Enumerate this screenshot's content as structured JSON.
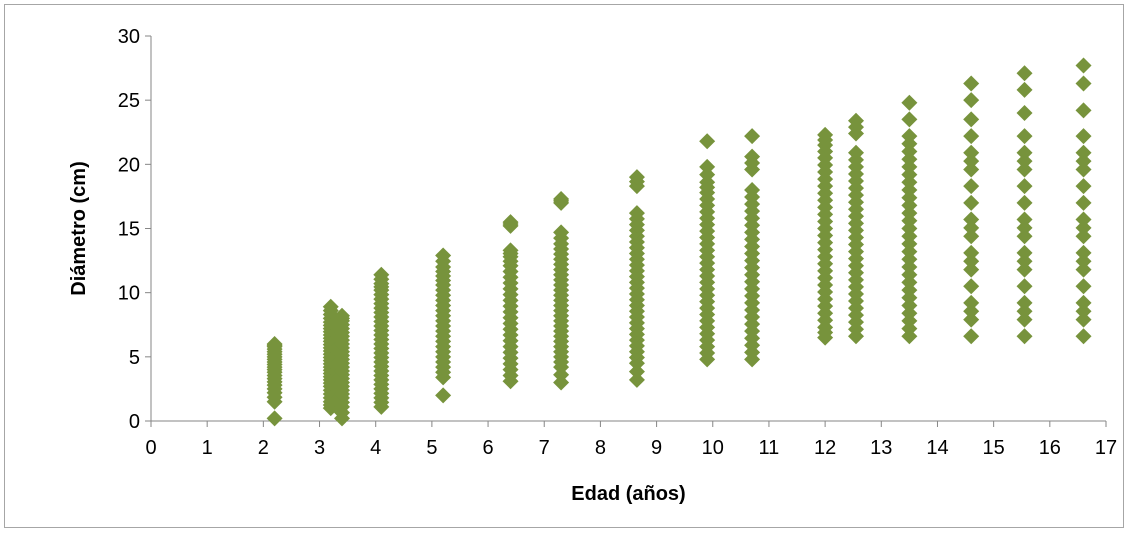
{
  "chart_data": {
    "type": "scatter",
    "title": "",
    "xlabel": "Edad (años)",
    "ylabel": "Diámetro (cm)",
    "xlim": [
      0,
      17
    ],
    "ylim": [
      0,
      30
    ],
    "x_ticks": [
      "0",
      "1",
      "2",
      "3",
      "4",
      "5",
      "6",
      "7",
      "8",
      "9",
      "10",
      "11",
      "12",
      "13",
      "14",
      "15",
      "16",
      "17"
    ],
    "y_ticks": [
      "0",
      "5",
      "10",
      "15",
      "20",
      "25",
      "30"
    ],
    "grid": false,
    "legend": "none",
    "marker": "diamond",
    "color": "#77933c",
    "series": [
      {
        "values": [
          {
            "x": 2.2,
            "y": [
              0.2,
              1.5,
              2.2,
              2.8,
              3.3,
              3.8,
              4.2,
              4.6,
              5.0,
              5.4,
              5.8,
              6.0
            ]
          },
          {
            "x": 3.2,
            "y": [
              1.0,
              1.5,
              2.1,
              2.7,
              3.2,
              3.7,
              4.2,
              4.7,
              5.2,
              5.7,
              6.2,
              6.7,
              7.2,
              7.7,
              8.3,
              8.9
            ]
          },
          {
            "x": 3.4,
            "y": [
              0.2,
              1.1,
              1.8,
              2.4,
              3.0,
              3.6,
              4.2,
              4.8,
              5.4,
              6.0,
              6.6,
              7.2,
              7.8,
              8.2
            ]
          },
          {
            "x": 4.1,
            "y": [
              1.1,
              1.8,
              2.5,
              3.2,
              3.9,
              4.6,
              5.3,
              6.0,
              6.7,
              7.4,
              8.1,
              8.8,
              9.5,
              10.2,
              10.7,
              11.4
            ]
          },
          {
            "x": 5.2,
            "y": [
              2.0,
              3.4,
              4.2,
              5.0,
              5.8,
              6.6,
              7.4,
              8.2,
              9.0,
              9.8,
              10.6,
              11.3,
              12.0,
              12.9
            ]
          },
          {
            "x": 6.4,
            "y": [
              3.1,
              4.0,
              4.9,
              5.8,
              6.7,
              7.6,
              8.5,
              9.4,
              10.3,
              11.2,
              12.1,
              12.8,
              13.3,
              15.2,
              15.5
            ]
          },
          {
            "x": 7.3,
            "y": [
              3.0,
              4.2,
              5.0,
              5.8,
              6.6,
              7.4,
              8.2,
              9.0,
              9.8,
              10.6,
              11.4,
              12.2,
              13.0,
              13.8,
              14.7,
              17.0,
              17.3
            ]
          },
          {
            "x": 8.65,
            "y": [
              3.2,
              4.5,
              5.4,
              6.3,
              7.2,
              8.1,
              9.0,
              9.9,
              10.8,
              11.7,
              12.6,
              13.5,
              14.4,
              15.3,
              16.2,
              18.3,
              19.0
            ]
          },
          {
            "x": 9.9,
            "y": [
              4.8,
              5.8,
              6.8,
              7.8,
              8.8,
              9.8,
              10.8,
              11.8,
              12.8,
              13.8,
              14.8,
              15.8,
              16.8,
              17.8,
              18.6,
              19.8,
              21.8
            ]
          },
          {
            "x": 10.7,
            "y": [
              4.8,
              5.9,
              7.0,
              8.1,
              9.2,
              10.3,
              11.4,
              12.5,
              13.6,
              14.7,
              15.8,
              16.9,
              18.0,
              19.6,
              20.6,
              22.2
            ]
          },
          {
            "x": 12.0,
            "y": [
              6.5,
              7.3,
              8.4,
              9.5,
              10.6,
              11.7,
              12.8,
              13.9,
              15.0,
              16.1,
              17.2,
              18.3,
              19.4,
              20.5,
              21.5,
              22.3
            ]
          },
          {
            "x": 12.55,
            "y": [
              6.6,
              7.7,
              8.8,
              9.9,
              11.0,
              12.1,
              13.2,
              14.3,
              15.4,
              16.5,
              17.6,
              18.7,
              19.8,
              20.9,
              22.4,
              23.4
            ]
          },
          {
            "x": 13.5,
            "y": [
              6.6,
              7.8,
              9.0,
              10.2,
              11.4,
              12.6,
              13.8,
              15.0,
              16.2,
              17.4,
              18.6,
              19.8,
              21.0,
              22.2,
              23.5,
              24.8
            ]
          },
          {
            "x": 14.6,
            "y": [
              6.6,
              7.9,
              9.2,
              10.5,
              11.8,
              13.1,
              14.4,
              15.7,
              17.0,
              18.3,
              19.6,
              20.9,
              22.2,
              23.5,
              25.0,
              26.3
            ]
          },
          {
            "x": 15.55,
            "y": [
              6.6,
              7.9,
              9.2,
              10.5,
              11.8,
              13.1,
              14.4,
              15.7,
              17.0,
              18.3,
              19.6,
              20.9,
              22.2,
              24.0,
              25.8,
              27.1
            ]
          },
          {
            "x": 16.6,
            "y": [
              6.6,
              7.9,
              9.2,
              10.5,
              11.8,
              13.1,
              14.4,
              15.7,
              17.0,
              18.3,
              19.6,
              20.9,
              22.2,
              24.2,
              26.3,
              27.7
            ]
          }
        ]
      }
    ]
  }
}
